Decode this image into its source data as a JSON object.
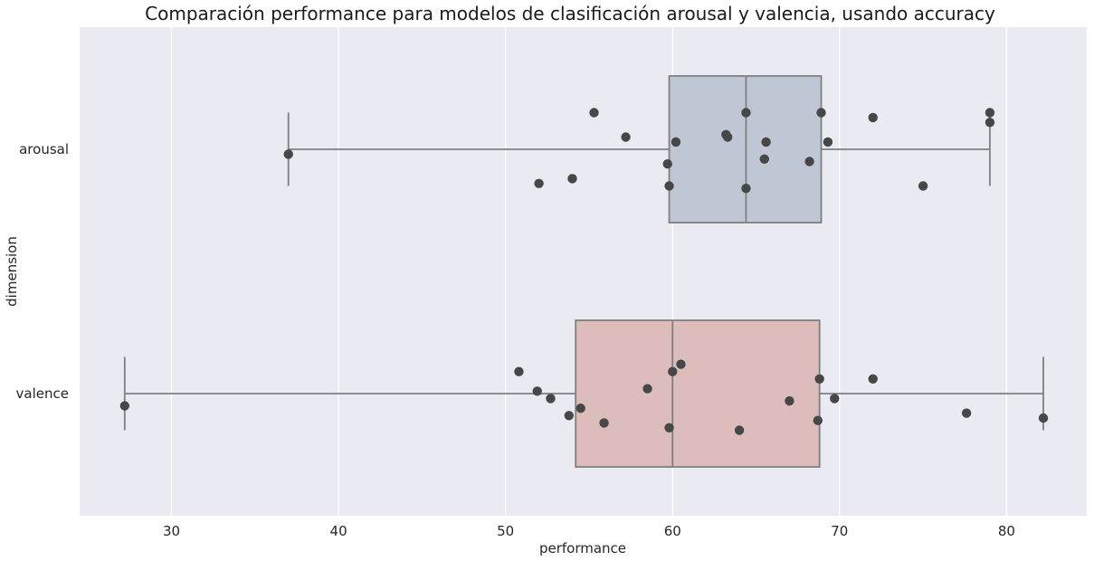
{
  "chart_data": {
    "type": "box",
    "title": "Comparación performance para modelos de clasificación arousal y valencia, usando accuracy",
    "xlabel": "performance",
    "ylabel": "dimension",
    "xlim": [
      24.5,
      84.8
    ],
    "xticks": [
      30,
      40,
      50,
      60,
      70,
      80
    ],
    "grid": true,
    "categories": [
      "arousal",
      "valence"
    ],
    "colors": {
      "background": "#EAEAF2",
      "grid": "#FFFFFF",
      "box_arousal": "#C0C7D4",
      "box_valence": "#DCBDBB",
      "box_edge": "#7F7F7F",
      "points": "#474747"
    },
    "boxes": [
      {
        "category": "arousal",
        "min": 37.0,
        "q1": 59.8,
        "median": 64.4,
        "q3": 68.9,
        "max": 79.0
      },
      {
        "category": "valence",
        "min": 27.2,
        "q1": 54.2,
        "median": 60.0,
        "q3": 68.8,
        "max": 82.2
      }
    ],
    "points": [
      {
        "category": "arousal",
        "values": [
          37.0,
          52.0,
          54.0,
          55.3,
          57.2,
          59.7,
          59.8,
          60.2,
          63.2,
          63.3,
          64.4,
          64.4,
          65.5,
          65.6,
          68.2,
          68.9,
          69.3,
          72.0,
          75.0,
          79.0,
          79.0
        ],
        "offsets": [
          0.02,
          0.14,
          0.12,
          -0.15,
          -0.05,
          0.06,
          0.15,
          -0.03,
          -0.06,
          -0.05,
          -0.15,
          0.16,
          0.04,
          -0.03,
          0.05,
          -0.15,
          -0.03,
          -0.13,
          0.15,
          -0.15,
          -0.11
        ]
      },
      {
        "category": "valence",
        "values": [
          27.2,
          50.8,
          51.9,
          52.7,
          53.8,
          54.5,
          55.9,
          58.5,
          59.8,
          60.0,
          60.5,
          64.0,
          67.0,
          68.7,
          68.8,
          69.7,
          72.0,
          77.6,
          82.2
        ],
        "offsets": [
          0.05,
          -0.09,
          -0.01,
          0.02,
          0.09,
          0.06,
          0.12,
          -0.02,
          0.14,
          -0.09,
          -0.12,
          0.15,
          0.03,
          0.11,
          -0.06,
          0.02,
          -0.06,
          0.08,
          0.1
        ]
      }
    ]
  }
}
